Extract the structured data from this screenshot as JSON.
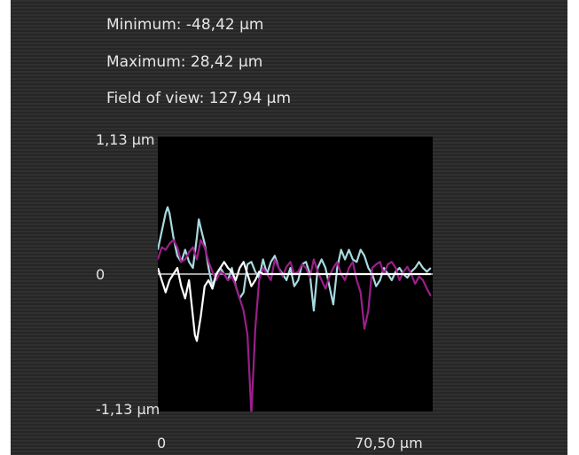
{
  "stats": {
    "minimum": "Minimum: -48,42 µm",
    "maximum": "Maximum: 28,42 µm",
    "field_of_view": "Field of view: 127,94 µm"
  },
  "chart_data": {
    "type": "line",
    "yticks": [
      "1,13 µm",
      "0",
      "-1,13 µm"
    ],
    "xticks": [
      "0",
      "70,50 µm"
    ],
    "xlim": [
      0,
      70.5
    ],
    "ylim": [
      -1.13,
      1.13
    ],
    "grid": false,
    "series": [
      {
        "color": "#a8dadf",
        "x": [
          0,
          1,
          2,
          2.5,
          3,
          4,
          5,
          6,
          7,
          8,
          9,
          10,
          10.5,
          11,
          12,
          13,
          14,
          15,
          16,
          17,
          18,
          19,
          20,
          21,
          22,
          23,
          24,
          25,
          26,
          27,
          28,
          29,
          30,
          31,
          32,
          33,
          34,
          35,
          36,
          37,
          38,
          39,
          40,
          41,
          42,
          43,
          44,
          45,
          46,
          47,
          48,
          49,
          50,
          51,
          52,
          53,
          54,
          55,
          56,
          57,
          58,
          59,
          60,
          61,
          62,
          63,
          64,
          65,
          66,
          67,
          68,
          69,
          70
        ],
        "y": [
          0.2,
          0.35,
          0.5,
          0.55,
          0.5,
          0.3,
          0.15,
          0.1,
          0.2,
          0.1,
          0.05,
          0.3,
          0.45,
          0.38,
          0.25,
          0.05,
          -0.1,
          0.0,
          0.05,
          0.0,
          -0.05,
          0.05,
          -0.1,
          -0.2,
          -0.15,
          0.08,
          0.1,
          0.02,
          -0.03,
          0.12,
          0.0,
          0.1,
          0.15,
          0.05,
          0.0,
          -0.05,
          0.05,
          -0.1,
          -0.05,
          0.08,
          0.1,
          0.0,
          -0.3,
          0.05,
          0.12,
          0.05,
          -0.1,
          -0.25,
          0.05,
          0.2,
          0.12,
          0.2,
          0.12,
          0.1,
          0.2,
          0.15,
          0.05,
          0.0,
          -0.1,
          -0.05,
          0.05,
          0.0,
          -0.05,
          0.02,
          0.05,
          0.0,
          -0.03,
          0.02,
          0.05,
          0.1,
          0.05,
          0.02,
          0.05
        ]
      },
      {
        "color": "#9a1f8a",
        "x": [
          0,
          1,
          2,
          3,
          4,
          5,
          6,
          7,
          8,
          9,
          10,
          11,
          12,
          13,
          14,
          15,
          16,
          17,
          18,
          19,
          20,
          21,
          22,
          23,
          24,
          25,
          26,
          27,
          28,
          29,
          30,
          31,
          32,
          33,
          34,
          35,
          36,
          37,
          38,
          39,
          40,
          41,
          42,
          43,
          44,
          45,
          46,
          47,
          48,
          49,
          50,
          51,
          52,
          53,
          54,
          55,
          56,
          57,
          58,
          59,
          60,
          61,
          62,
          63,
          64,
          65,
          66,
          67,
          68,
          69,
          70
        ],
        "y": [
          0.12,
          0.22,
          0.2,
          0.25,
          0.28,
          0.22,
          0.1,
          0.12,
          0.18,
          0.22,
          0.12,
          0.28,
          0.22,
          0.1,
          0.02,
          -0.05,
          0.02,
          0.0,
          -0.05,
          -0.02,
          -0.1,
          -0.2,
          -0.3,
          -0.5,
          -1.15,
          -0.45,
          -0.05,
          0.05,
          0.0,
          -0.05,
          0.12,
          0.05,
          -0.02,
          0.06,
          0.1,
          0.0,
          0.02,
          0.08,
          0.05,
          -0.03,
          0.12,
          0.02,
          -0.05,
          -0.12,
          -0.02,
          0.05,
          0.1,
          0.0,
          -0.05,
          0.05,
          0.1,
          -0.05,
          -0.15,
          -0.45,
          -0.3,
          0.05,
          0.08,
          0.1,
          0.0,
          0.08,
          0.1,
          0.05,
          -0.05,
          0.02,
          0.06,
          0.0,
          -0.08,
          -0.02,
          -0.05,
          -0.12,
          -0.18
        ]
      },
      {
        "color": "#ffffff",
        "x": [
          0,
          1,
          2,
          3,
          4,
          5,
          6,
          7,
          8,
          9,
          9.5,
          10,
          11,
          12,
          13,
          14,
          15,
          16,
          17,
          18,
          19,
          20,
          21,
          22,
          23,
          24,
          25,
          26,
          27,
          28,
          29,
          30,
          31,
          32,
          33,
          34,
          35,
          36,
          37,
          38,
          39,
          40,
          41,
          42,
          43,
          44,
          45,
          46,
          47,
          48,
          49,
          50,
          51,
          52,
          53,
          54,
          55,
          56,
          57,
          58,
          59,
          60,
          61,
          62,
          63,
          64,
          65,
          66,
          67,
          68,
          69,
          70
        ],
        "y": [
          0.05,
          -0.05,
          -0.15,
          -0.05,
          0.0,
          0.05,
          -0.1,
          -0.2,
          -0.05,
          -0.35,
          -0.5,
          -0.55,
          -0.35,
          -0.1,
          -0.05,
          -0.12,
          0.0,
          0.05,
          0.1,
          0.05,
          0.02,
          -0.05,
          0.05,
          0.1,
          0.0,
          -0.1,
          -0.05,
          0.02,
          0.0,
          0.0,
          0.0,
          0.0,
          0.0,
          0.0,
          0.0,
          0.0,
          0.0,
          0.0,
          0.0,
          0.0,
          0.0,
          0.0,
          0.0,
          0.0,
          0.0,
          0.0,
          0.0,
          0.0,
          0.0,
          0.0,
          0.0,
          0.0,
          0.0,
          0.0,
          0.0,
          0.0,
          0.0,
          0.0,
          0.0,
          0.0,
          0.0,
          0.0,
          0.0,
          0.0,
          0.0,
          0.0,
          0.0,
          0.0,
          0.0,
          0.0,
          0.0,
          0.0
        ]
      }
    ]
  }
}
